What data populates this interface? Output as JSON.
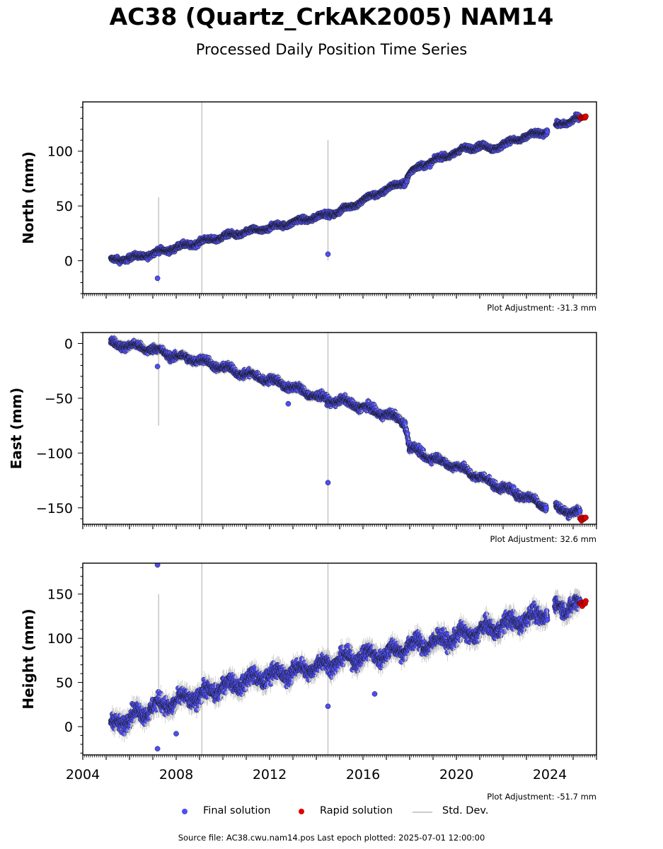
{
  "header": {
    "title": "AC38 (Quartz_CrkAK2005) NAM14",
    "subtitle": "Processed Daily Position Time Series"
  },
  "legend": {
    "final_label": "Final solution",
    "rapid_label": "Rapid solution",
    "std_label": "Std. Dev."
  },
  "footer": {
    "text": "Source file: AC38.cwu.nam14.pos  Last epoch plotted: 2025-07-01 12:00:00"
  },
  "colors": {
    "final": "#4e4ef5",
    "final_edge": "#1a1a1a",
    "rapid": "#e00000",
    "stddev": "#c8c8c8"
  },
  "chart_data": [
    {
      "type": "scatter",
      "ylabel": "North (mm)",
      "adjustment": "Plot Adjustment: -31.3 mm",
      "xlim": [
        2004.0,
        2026.0
      ],
      "ylim": [
        -30,
        145
      ],
      "yticks": [
        0,
        50,
        100
      ],
      "trend": [
        [
          2005.2,
          0
        ],
        [
          2006.5,
          4
        ],
        [
          2008.0,
          12
        ],
        [
          2010.0,
          22
        ],
        [
          2012.0,
          30
        ],
        [
          2014.0,
          40
        ],
        [
          2015.0,
          45
        ],
        [
          2016.0,
          55
        ],
        [
          2017.0,
          65
        ],
        [
          2017.8,
          72
        ],
        [
          2018.0,
          80
        ],
        [
          2018.5,
          87
        ],
        [
          2019.5,
          95
        ],
        [
          2020.5,
          103
        ],
        [
          2021.0,
          105
        ],
        [
          2021.5,
          102
        ],
        [
          2022.5,
          110
        ],
        [
          2023.8,
          118
        ],
        [
          2024.4,
          124
        ],
        [
          2025.2,
          130
        ]
      ],
      "gaps": [
        [
          2023.9,
          2024.25
        ]
      ],
      "rapid_range": [
        2025.3,
        2025.55
      ],
      "rapid_center": 131,
      "noise": 2.5,
      "outliers": [
        [
          2007.2,
          -16
        ],
        [
          2014.5,
          6
        ]
      ],
      "stddev_spikes": [
        [
          2007.25,
          -20,
          58
        ],
        [
          2009.1,
          -30,
          145
        ],
        [
          2014.5,
          0,
          110
        ]
      ]
    },
    {
      "type": "scatter",
      "ylabel": "East (mm)",
      "adjustment": "Plot Adjustment: 32.6 mm",
      "xlim": [
        2004.0,
        2026.0
      ],
      "ylim": [
        -165,
        10
      ],
      "yticks": [
        -150,
        -100,
        -50,
        0
      ],
      "trend": [
        [
          2005.2,
          0
        ],
        [
          2006.0,
          -2
        ],
        [
          2007.0,
          -5
        ],
        [
          2008.0,
          -12
        ],
        [
          2009.0,
          -15
        ],
        [
          2010.0,
          -22
        ],
        [
          2011.0,
          -28
        ],
        [
          2012.0,
          -33
        ],
        [
          2013.0,
          -40
        ],
        [
          2014.0,
          -48
        ],
        [
          2014.5,
          -52
        ],
        [
          2015.0,
          -52
        ],
        [
          2016.0,
          -58
        ],
        [
          2017.0,
          -65
        ],
        [
          2017.5,
          -68
        ],
        [
          2017.8,
          -72
        ],
        [
          2018.0,
          -95
        ],
        [
          2019.0,
          -105
        ],
        [
          2020.0,
          -112
        ],
        [
          2021.0,
          -122
        ],
        [
          2022.0,
          -132
        ],
        [
          2023.0,
          -140
        ],
        [
          2023.8,
          -148
        ],
        [
          2024.3,
          -150
        ],
        [
          2025.2,
          -155
        ]
      ],
      "gaps": [
        [
          2023.85,
          2024.25
        ]
      ],
      "rapid_range": [
        2025.3,
        2025.55
      ],
      "rapid_center": -160,
      "noise": 3.5,
      "outliers": [
        [
          2007.2,
          -21
        ],
        [
          2012.8,
          -55
        ],
        [
          2014.5,
          -127
        ]
      ],
      "stddev_spikes": [
        [
          2007.25,
          -75,
          10
        ],
        [
          2009.1,
          -165,
          10
        ],
        [
          2014.5,
          -165,
          10
        ]
      ]
    },
    {
      "type": "scatter",
      "ylabel": "Height (mm)",
      "adjustment": "Plot Adjustment: -51.7 mm",
      "xlim": [
        2004.0,
        2026.0
      ],
      "ylim": [
        -32,
        185
      ],
      "yticks": [
        0,
        50,
        100,
        150
      ],
      "xticks": [
        2004,
        2008,
        2012,
        2016,
        2020,
        2024
      ],
      "trend": [
        [
          2005.2,
          2
        ],
        [
          2006.0,
          10
        ],
        [
          2007.0,
          22
        ],
        [
          2008.0,
          28
        ],
        [
          2009.0,
          35
        ],
        [
          2010.0,
          45
        ],
        [
          2011.0,
          52
        ],
        [
          2012.0,
          58
        ],
        [
          2013.0,
          62
        ],
        [
          2014.0,
          68
        ],
        [
          2015.0,
          75
        ],
        [
          2016.0,
          80
        ],
        [
          2017.0,
          82
        ],
        [
          2018.0,
          92
        ],
        [
          2019.0,
          95
        ],
        [
          2020.0,
          102
        ],
        [
          2021.0,
          108
        ],
        [
          2022.0,
          115
        ],
        [
          2023.0,
          122
        ],
        [
          2023.8,
          128
        ],
        [
          2024.3,
          135
        ],
        [
          2025.2,
          138
        ]
      ],
      "gaps": [
        [
          2023.9,
          2024.2
        ]
      ],
      "rapid_range": [
        2025.3,
        2025.55
      ],
      "rapid_center": 140,
      "noise": 9,
      "outliers": [
        [
          2007.2,
          183
        ],
        [
          2007.2,
          -25
        ],
        [
          2008.0,
          -8
        ],
        [
          2014.5,
          23
        ],
        [
          2016.5,
          37
        ]
      ],
      "stddev_spikes": [
        [
          2007.25,
          10,
          150
        ],
        [
          2009.1,
          -32,
          185
        ],
        [
          2014.5,
          -32,
          185
        ]
      ]
    }
  ]
}
